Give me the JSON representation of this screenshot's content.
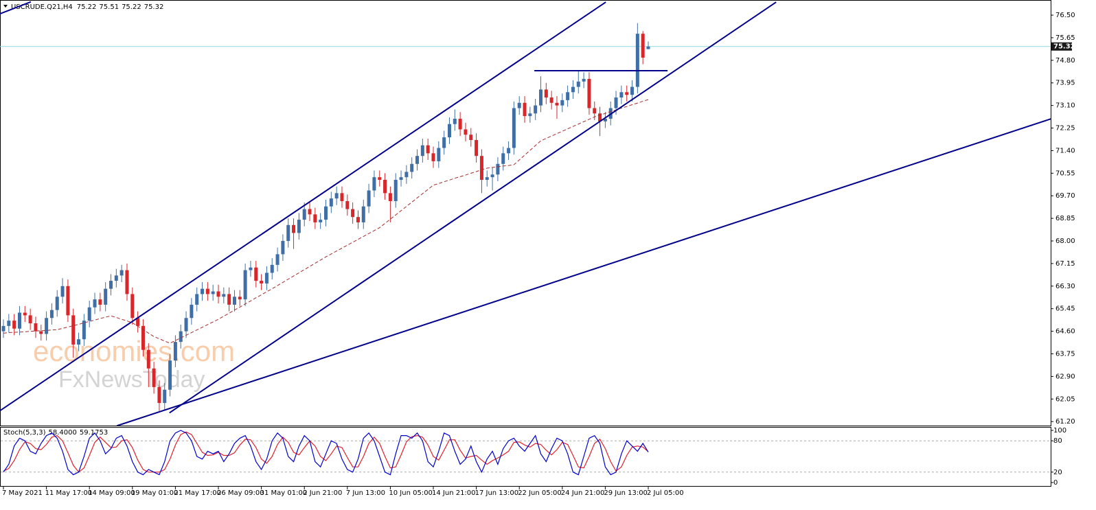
{
  "chart_data": {
    "type": "candlestick",
    "title": "USCRUDE.Q21,H4",
    "watermark": [
      "economies.com",
      "FxNewsToday"
    ],
    "up_color": "#3f6fa6",
    "down_color": "#d8262b",
    "ma_color": "#a52a2a",
    "line_color": "#00008b",
    "price_line_color": "#8fd8e8",
    "categories": [
      "7 May 2021",
      null,
      null,
      null,
      null,
      null,
      null,
      null,
      "11 May 17:00",
      null,
      null,
      null,
      null,
      null,
      null,
      null,
      "14 May 09:00",
      null,
      null,
      null,
      null,
      null,
      null,
      null,
      "19 May 01:00",
      null,
      null,
      null,
      null,
      null,
      null,
      null,
      "21 May 17:00",
      null,
      null,
      null,
      null,
      null,
      null,
      null,
      "26 May 09:00",
      null,
      null,
      null,
      null,
      null,
      null,
      null,
      "31 May 01:00",
      null,
      null,
      null,
      null,
      null,
      null,
      null,
      "2 Jun 21:00",
      null,
      null,
      null,
      null,
      null,
      null,
      null,
      "7 Jun 13:00",
      null,
      null,
      null,
      null,
      null,
      null,
      null,
      "10 Jun 05:00",
      null,
      null,
      null,
      null,
      null,
      null,
      null,
      "14 Jun 21:00",
      null,
      null,
      null,
      null,
      null,
      null,
      null,
      "17 Jun 13:00",
      null,
      null,
      null,
      null,
      null,
      null,
      null,
      "22 Jun 05:00",
      null,
      null,
      null,
      null,
      null,
      null,
      null,
      "24 Jun 21:00",
      null,
      null,
      null,
      null,
      null,
      null,
      null,
      "29 Jun 13:00",
      null,
      null,
      null,
      null,
      null,
      null,
      null,
      "2 Jul 05:00"
    ],
    "open": [
      64.6,
      64.8,
      65.0,
      64.7,
      65.3,
      65.2,
      64.9,
      64.6,
      64.5,
      65.1,
      65.4,
      65.9,
      66.3,
      65.2,
      64.1,
      64.3,
      65.0,
      65.5,
      65.8,
      65.6,
      66.2,
      66.5,
      66.7,
      66.9,
      66.0,
      65.1,
      64.8,
      63.9,
      63.2,
      62.5,
      61.9,
      62.4,
      63.5,
      64.2,
      64.6,
      65.1,
      65.6,
      66.0,
      66.2,
      66.0,
      66.1,
      65.9,
      66.0,
      65.6,
      65.9,
      65.8,
      66.9,
      67.0,
      66.5,
      66.4,
      66.8,
      67.1,
      67.5,
      68.0,
      68.6,
      68.3,
      68.8,
      69.2,
      69.0,
      68.7,
      68.8,
      69.3,
      69.6,
      69.8,
      69.5,
      69.2,
      68.9,
      68.7,
      69.3,
      69.9,
      70.4,
      70.3,
      69.8,
      69.5,
      70.3,
      70.4,
      70.6,
      70.9,
      71.2,
      71.6,
      71.3,
      71.0,
      71.5,
      71.9,
      72.4,
      72.6,
      72.2,
      72.0,
      71.8,
      71.2,
      70.3,
      70.4,
      70.5,
      70.9,
      71.3,
      71.5,
      73.0,
      73.2,
      72.7,
      72.8,
      73.1,
      73.7,
      73.4,
      73.2,
      73.1,
      73.3,
      73.6,
      73.8,
      74.0,
      74.1,
      73.0,
      72.8,
      72.5,
      72.6,
      73.0,
      73.4,
      73.6,
      73.5,
      73.8,
      75.8,
      75.22
    ],
    "high": [
      65.05,
      65.25,
      65.25,
      65.55,
      65.55,
      65.45,
      65.15,
      64.85,
      65.35,
      65.65,
      66.15,
      66.6,
      66.55,
      65.45,
      64.55,
      65.25,
      65.75,
      66.05,
      66.05,
      66.45,
      66.75,
      66.95,
      67.1,
      67.15,
      66.25,
      65.35,
      65.05,
      64.15,
      63.45,
      62.75,
      62.65,
      63.75,
      64.45,
      64.85,
      65.35,
      65.85,
      66.25,
      66.45,
      66.45,
      66.35,
      66.35,
      66.25,
      66.25,
      66.15,
      66.15,
      67.15,
      67.25,
      67.25,
      66.75,
      67.05,
      67.35,
      67.75,
      68.25,
      68.85,
      68.85,
      69.05,
      69.45,
      69.45,
      69.25,
      69.05,
      69.55,
      69.85,
      70.05,
      70.05,
      69.75,
      69.45,
      69.15,
      69.55,
      70.15,
      70.65,
      70.65,
      70.55,
      70.05,
      70.55,
      70.65,
      70.85,
      71.15,
      71.45,
      71.85,
      71.85,
      71.55,
      71.75,
      72.15,
      72.65,
      72.95,
      72.85,
      72.45,
      72.25,
      72.05,
      71.45,
      70.65,
      70.75,
      71.15,
      71.55,
      71.75,
      73.25,
      73.45,
      73.45,
      73.05,
      73.35,
      74.2,
      73.95,
      73.65,
      73.45,
      73.55,
      73.85,
      74.05,
      74.42,
      74.35,
      74.35,
      73.25,
      73.05,
      72.85,
      73.25,
      73.65,
      73.85,
      73.85,
      74.05,
      76.2,
      75.9,
      75.51
    ],
    "low": [
      64.35,
      64.55,
      64.45,
      64.45,
      64.95,
      64.65,
      64.35,
      64.25,
      64.25,
      64.85,
      65.15,
      65.65,
      64.95,
      63.6,
      63.85,
      64.05,
      64.75,
      65.25,
      65.35,
      65.35,
      65.95,
      66.25,
      66.45,
      65.75,
      64.85,
      64.55,
      63.65,
      62.5,
      62.25,
      61.6,
      61.65,
      62.15,
      63.25,
      63.95,
      64.35,
      64.85,
      65.35,
      65.75,
      65.75,
      65.75,
      65.65,
      65.65,
      65.35,
      65.35,
      65.55,
      65.55,
      66.65,
      66.25,
      66.15,
      66.15,
      66.55,
      66.85,
      67.25,
      67.75,
      67.7,
      68.05,
      68.55,
      68.75,
      68.45,
      68.45,
      68.55,
      69.05,
      69.35,
      69.25,
      68.95,
      68.65,
      68.45,
      68.45,
      69.05,
      69.65,
      70.05,
      69.55,
      68.7,
      69.25,
      70.05,
      70.15,
      70.35,
      70.65,
      70.95,
      71.05,
      70.75,
      70.75,
      71.25,
      71.65,
      72.15,
      71.95,
      71.75,
      71.55,
      70.95,
      69.8,
      70.05,
      69.9,
      70.25,
      70.65,
      71.05,
      71.25,
      72.75,
      72.45,
      72.45,
      72.55,
      72.85,
      73.15,
      72.95,
      72.6,
      72.85,
      73.05,
      73.35,
      73.55,
      73.75,
      72.75,
      72.55,
      71.95,
      72.25,
      72.35,
      72.75,
      73.15,
      73.25,
      73.25,
      73.55,
      74.65,
      75.22
    ],
    "close": [
      64.8,
      65.0,
      64.7,
      65.3,
      65.2,
      64.9,
      64.6,
      64.5,
      65.1,
      65.4,
      65.9,
      66.3,
      65.2,
      64.1,
      64.3,
      65.0,
      65.5,
      65.8,
      65.6,
      66.2,
      66.5,
      66.7,
      66.9,
      66.0,
      65.1,
      64.8,
      63.9,
      63.2,
      62.5,
      61.9,
      62.4,
      63.5,
      64.2,
      64.6,
      65.1,
      65.6,
      66.0,
      66.2,
      66.0,
      66.1,
      65.9,
      66.0,
      65.6,
      65.9,
      65.8,
      66.9,
      67.0,
      66.5,
      66.4,
      66.8,
      67.1,
      67.5,
      68.0,
      68.6,
      68.3,
      68.8,
      69.2,
      69.0,
      68.7,
      68.8,
      69.3,
      69.6,
      69.8,
      69.5,
      69.2,
      68.9,
      68.7,
      69.3,
      69.9,
      70.4,
      70.3,
      69.8,
      69.5,
      70.3,
      70.4,
      70.6,
      70.9,
      71.2,
      71.6,
      71.3,
      71.0,
      71.5,
      71.9,
      72.4,
      72.6,
      72.2,
      72.0,
      71.8,
      71.2,
      70.3,
      70.4,
      70.5,
      70.9,
      71.3,
      71.5,
      73.0,
      73.2,
      72.7,
      72.8,
      73.1,
      73.7,
      73.4,
      73.2,
      73.1,
      73.3,
      73.6,
      73.8,
      74.0,
      74.1,
      73.0,
      72.8,
      72.5,
      72.6,
      73.0,
      73.4,
      73.6,
      73.5,
      73.8,
      75.8,
      74.9,
      75.32
    ],
    "ma": [
      64.53,
      64.55,
      64.56,
      64.57,
      64.58,
      64.6,
      64.61,
      64.62,
      64.63,
      64.65,
      64.66,
      64.71,
      64.76,
      64.81,
      64.86,
      64.92,
      64.97,
      65.02,
      65.08,
      65.13,
      65.18,
      65.12,
      65.05,
      64.99,
      64.92,
      64.79,
      64.66,
      64.53,
      64.4,
      64.32,
      64.23,
      64.15,
      64.25,
      64.35,
      64.45,
      64.55,
      64.65,
      64.75,
      64.85,
      64.95,
      65.05,
      65.17,
      65.28,
      65.4,
      65.51,
      65.63,
      65.74,
      65.86,
      65.97,
      66.09,
      66.2,
      66.32,
      66.44,
      66.56,
      66.68,
      66.8,
      66.92,
      67.04,
      67.16,
      67.28,
      67.4,
      67.51,
      67.62,
      67.73,
      67.84,
      67.95,
      68.06,
      68.17,
      68.28,
      68.39,
      68.5,
      68.66,
      68.82,
      68.98,
      69.14,
      69.3,
      69.46,
      69.62,
      69.78,
      69.94,
      70.1,
      70.16,
      70.23,
      70.29,
      70.36,
      70.42,
      70.48,
      70.55,
      70.61,
      70.68,
      70.74,
      70.77,
      70.79,
      70.82,
      70.84,
      70.87,
      71.05,
      71.23,
      71.41,
      71.59,
      71.77,
      71.86,
      71.95,
      72.04,
      72.13,
      72.22,
      72.31,
      72.4,
      72.49,
      72.58,
      72.67,
      72.74,
      72.8,
      72.87,
      72.93,
      73.0,
      73.06,
      73.13,
      73.19,
      73.26,
      73.32
    ],
    "lines": [
      {
        "x": [
          -0.64,
          5.1
        ],
        "y": [
          76.55,
          77.0
        ]
      },
      {
        "x": [
          -0.64,
          112.1
        ],
        "y": [
          61.61,
          76.99
        ]
      },
      {
        "x": [
          30.9,
          143.8
        ],
        "y": [
          61.53,
          76.99
        ]
      },
      {
        "x": [
          21.1,
          195
        ],
        "y": [
          61.04,
          72.6
        ]
      },
      {
        "x": [
          98.8,
          123.6
        ],
        "y": [
          74.41,
          74.41
        ]
      }
    ],
    "ylim": [
      61.05,
      77.07
    ],
    "yticks": [
      {
        "value": 76.5,
        "label": "76.50"
      },
      75.65,
      {
        "value": 74.8,
        "label": "74.80"
      },
      73.95,
      {
        "value": 73.1,
        "label": "73.10"
      },
      72.25,
      {
        "value": 71.4,
        "label": "71.40"
      },
      70.55,
      {
        "value": 69.7,
        "label": "69.70"
      },
      68.85,
      {
        "value": 68,
        "label": "68.00"
      },
      67.15,
      {
        "value": 66.3,
        "label": "66.30"
      },
      65.45,
      {
        "value": 64.6,
        "label": "64.60"
      },
      63.75,
      {
        "value": 62.9,
        "label": "62.90"
      },
      62.05,
      {
        "value": 61.2,
        "label": "61.20"
      }
    ],
    "stoch": {
      "name": "Stoch(5,3,3)",
      "readout": [
        {
          "value": 58.4,
          "label": "58.4000"
        },
        59.1753
      ],
      "main_color": "#0000cd",
      "signal_color": "#e0202a",
      "main": [
        20,
        35,
        70,
        85,
        80,
        60,
        55,
        75,
        90,
        95,
        85,
        60,
        25,
        15,
        20,
        50,
        85,
        95,
        80,
        55,
        65,
        85,
        90,
        70,
        40,
        20,
        15,
        25,
        20,
        15,
        40,
        80,
        95,
        100,
        95,
        80,
        50,
        45,
        60,
        55,
        60,
        40,
        55,
        75,
        85,
        90,
        70,
        40,
        25,
        45,
        80,
        95,
        85,
        50,
        40,
        70,
        90,
        80,
        40,
        30,
        55,
        80,
        75,
        45,
        25,
        20,
        45,
        85,
        95,
        80,
        50,
        20,
        15,
        55,
        90,
        90,
        85,
        95,
        80,
        40,
        30,
        60,
        95,
        90,
        60,
        35,
        45,
        70,
        40,
        20,
        45,
        60,
        35,
        65,
        80,
        85,
        70,
        60,
        75,
        90,
        55,
        40,
        65,
        85,
        80,
        55,
        20,
        15,
        50,
        85,
        90,
        75,
        30,
        15,
        20,
        55,
        80,
        70,
        60,
        75,
        58.4
      ],
      "signal": [
        22,
        27,
        42,
        63,
        78,
        75,
        65,
        63,
        73,
        87,
        90,
        80,
        57,
        33,
        20,
        28,
        52,
        77,
        87,
        77,
        67,
        68,
        80,
        82,
        67,
        43,
        25,
        20,
        20,
        20,
        25,
        45,
        72,
        92,
        97,
        92,
        75,
        58,
        52,
        53,
        58,
        52,
        52,
        57,
        72,
        83,
        82,
        67,
        45,
        37,
        50,
        73,
        87,
        77,
        58,
        53,
        67,
        80,
        70,
        50,
        42,
        55,
        70,
        67,
        48,
        30,
        30,
        50,
        75,
        87,
        75,
        50,
        28,
        30,
        53,
        78,
        88,
        90,
        87,
        72,
        50,
        43,
        62,
        82,
        82,
        62,
        47,
        50,
        52,
        43,
        35,
        42,
        47,
        53,
        60,
        77,
        78,
        72,
        68,
        75,
        73,
        62,
        53,
        63,
        77,
        73,
        52,
        30,
        28,
        50,
        75,
        83,
        65,
        40,
        22,
        30,
        52,
        68,
        70,
        68,
        59.1753
      ],
      "ylim": [
        0,
        100
      ],
      "yticks": [
        100,
        80,
        20,
        0
      ],
      "levels": [
        80,
        20
      ]
    }
  }
}
